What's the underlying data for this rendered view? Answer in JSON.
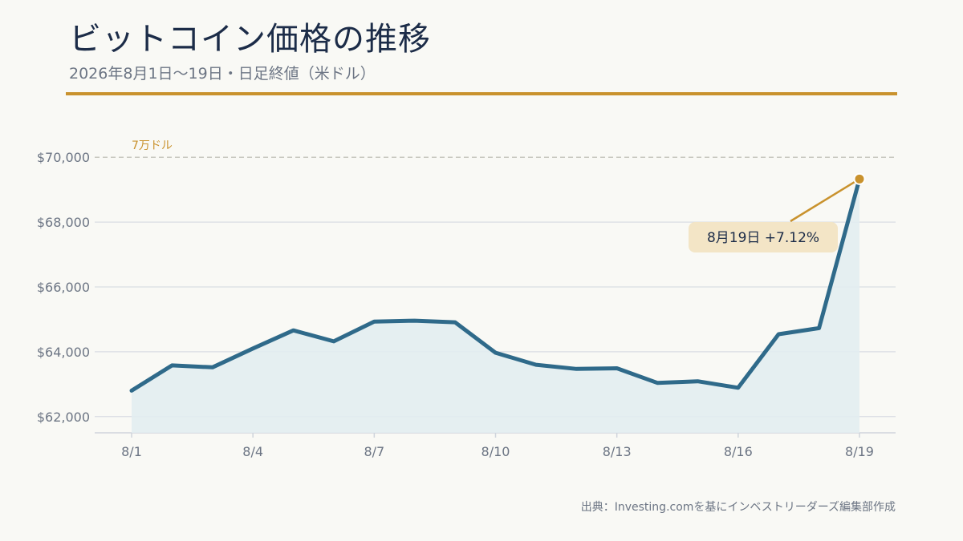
{
  "header": {
    "title": "ビットコイン価格の推移",
    "subtitle": "2026年8月1日〜19日・日足終値（米ドル）"
  },
  "source": "出典：Investing.comを基にインベストリーダーズ編集部作成",
  "colors": {
    "accent": "#c9922d",
    "line": "#2f6a8a",
    "area": "#e2edf1",
    "grid": "#d9dde3",
    "callout_bg": "#f3e5c6"
  },
  "chart_data": {
    "type": "area",
    "x": [
      "8/1",
      "8/2",
      "8/3",
      "8/4",
      "8/5",
      "8/6",
      "8/7",
      "8/8",
      "8/9",
      "8/10",
      "8/11",
      "8/12",
      "8/13",
      "8/14",
      "8/15",
      "8/16",
      "8/17",
      "8/18",
      "8/19"
    ],
    "x_tick_labels": [
      "8/1",
      "8/4",
      "8/7",
      "8/10",
      "8/13",
      "8/16",
      "8/19"
    ],
    "series": [
      {
        "values": [
          62800,
          63580,
          63520,
          64100,
          64660,
          64320,
          64930,
          64960,
          64910,
          63970,
          63600,
          63470,
          63490,
          63040,
          63090,
          62890,
          64540,
          64730,
          69330
        ]
      }
    ],
    "y_ticks": [
      62000,
      64000,
      66000,
      68000,
      70000
    ],
    "y_tick_labels": [
      "$62,000",
      "$64,000",
      "$66,000",
      "$68,000",
      "$70,000"
    ],
    "ylim": [
      61500,
      70500
    ],
    "grid": true,
    "reference_line": {
      "value": 70000,
      "label": "7万ドル"
    },
    "annotation": {
      "label": "8月19日  +7.12%",
      "target": "8/19"
    }
  }
}
